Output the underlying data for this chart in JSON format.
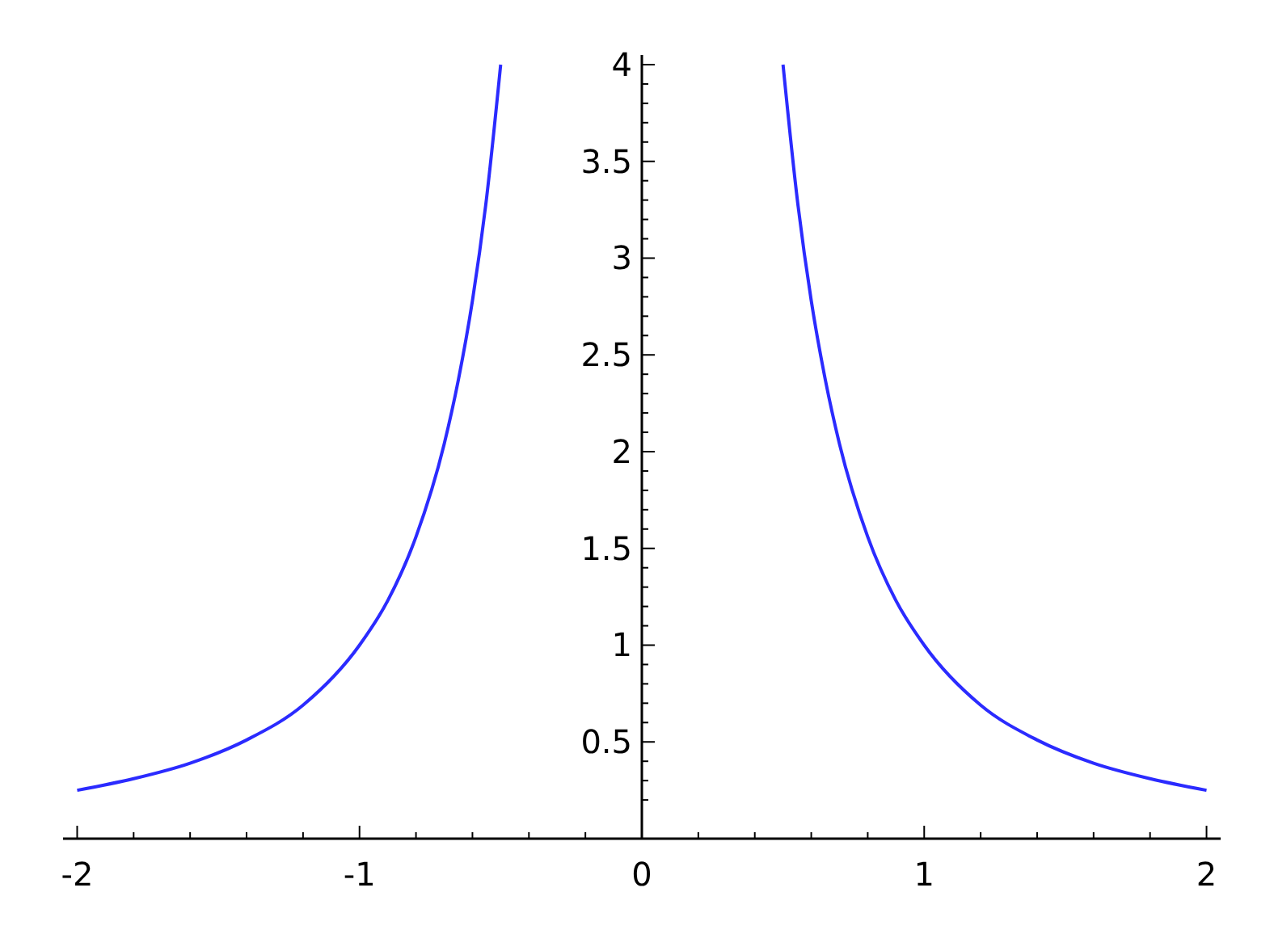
{
  "chart_data": {
    "type": "line",
    "xlim": [
      -2.05,
      2.05
    ],
    "ylim": [
      0,
      4.05
    ],
    "xticks": [
      -2,
      {
        "value": -1.8,
        "label": null
      },
      {
        "value": -1.6,
        "label": null
      },
      {
        "value": -1.4,
        "label": null
      },
      {
        "value": -1.2,
        "label": null
      },
      -1,
      {
        "value": -0.8,
        "label": null
      },
      {
        "value": -0.6,
        "label": null
      },
      {
        "value": -0.4,
        "label": null
      },
      {
        "value": -0.2,
        "label": null
      },
      0,
      {
        "value": 0.2,
        "label": null
      },
      {
        "value": 0.4,
        "label": null
      },
      {
        "value": 0.6,
        "label": null
      },
      {
        "value": 0.8,
        "label": null
      },
      1,
      {
        "value": 1.2,
        "label": null
      },
      {
        "value": 1.4,
        "label": null
      },
      {
        "value": 1.6,
        "label": null
      },
      {
        "value": 1.8,
        "label": null
      },
      2
    ],
    "yticks": [
      {
        "value": 0.2,
        "label": null
      },
      {
        "value": 0.3,
        "label": null
      },
      {
        "value": 0.4,
        "label": null
      },
      0.5,
      {
        "value": 0.6,
        "label": null
      },
      {
        "value": 0.7,
        "label": null
      },
      {
        "value": 0.8,
        "label": null
      },
      {
        "value": 0.9,
        "label": null
      },
      1,
      {
        "value": 1.1,
        "label": null
      },
      {
        "value": 1.2,
        "label": null
      },
      {
        "value": 1.3,
        "label": null
      },
      {
        "value": 1.4,
        "label": null
      },
      1.5,
      {
        "value": 1.6,
        "label": null
      },
      {
        "value": 1.7,
        "label": null
      },
      {
        "value": 1.8,
        "label": null
      },
      {
        "value": 1.9,
        "label": null
      },
      2,
      {
        "value": 2.1,
        "label": null
      },
      {
        "value": 2.2,
        "label": null
      },
      {
        "value": 2.3,
        "label": null
      },
      {
        "value": 2.4,
        "label": null
      },
      2.5,
      {
        "value": 2.6,
        "label": null
      },
      {
        "value": 2.7,
        "label": null
      },
      {
        "value": 2.8,
        "label": null
      },
      {
        "value": 2.9,
        "label": null
      },
      3,
      {
        "value": 3.1,
        "label": null
      },
      {
        "value": 3.2,
        "label": null
      },
      {
        "value": 3.3,
        "label": null
      },
      {
        "value": 3.4,
        "label": null
      },
      3.5,
      {
        "value": 3.6,
        "label": null
      },
      {
        "value": 3.7,
        "label": null
      },
      {
        "value": 3.8,
        "label": null
      },
      {
        "value": 3.9,
        "label": null
      },
      4
    ],
    "grid": false,
    "marker": "none",
    "line_style": "solid",
    "series": [
      {
        "color": "#2b2bff",
        "x": [
          -2,
          -1.8,
          -1.6,
          -1.4,
          -1.2,
          -1,
          -0.9,
          -0.8,
          -0.7,
          -0.65,
          -0.6,
          -0.55,
          -0.5
        ],
        "values": [
          0.25,
          0.31,
          0.39,
          0.51,
          0.69,
          1,
          1.23,
          1.56,
          2.04,
          2.37,
          2.78,
          3.31,
          4
        ]
      },
      {
        "color": "#2b2bff",
        "x": [
          0.5,
          0.55,
          0.6,
          0.65,
          0.7,
          0.8,
          0.9,
          1,
          1.2,
          1.4,
          1.6,
          1.8,
          2
        ],
        "values": [
          4,
          3.31,
          2.78,
          2.37,
          2.04,
          1.56,
          1.23,
          1,
          0.69,
          0.51,
          0.39,
          0.31,
          0.25
        ]
      }
    ]
  }
}
